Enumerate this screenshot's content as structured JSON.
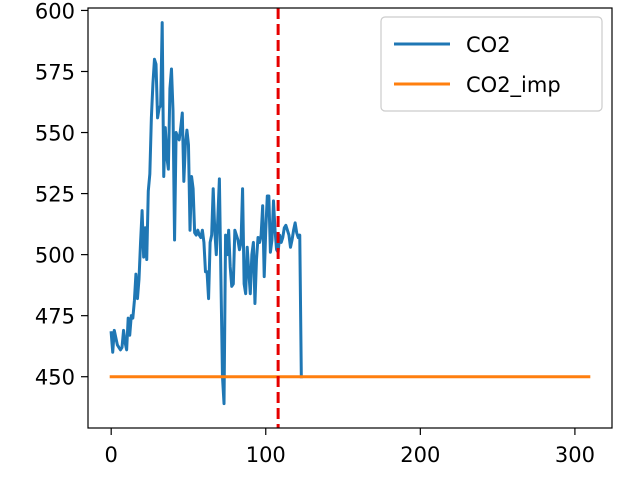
{
  "chart_data": {
    "type": "line",
    "title": "",
    "xlabel": "",
    "ylabel": "",
    "xlim": [
      -15,
      324
    ],
    "ylim": [
      429,
      601
    ],
    "xticks": [
      0,
      100,
      200,
      300
    ],
    "yticks": [
      450,
      475,
      500,
      525,
      550,
      575,
      600
    ],
    "xtick_labels": [
      "0",
      "100",
      "200",
      "300"
    ],
    "ytick_labels": [
      "450",
      "475",
      "500",
      "525",
      "550",
      "575",
      "600"
    ],
    "grid": false,
    "legend_position": "top-right",
    "vline": {
      "x": 108,
      "color": "#e60000",
      "style": "dashed"
    },
    "series": [
      {
        "name": "CO2",
        "color": "#1f77b4",
        "x": [
          0,
          1,
          2,
          3,
          4,
          5,
          6,
          7,
          8,
          9,
          10,
          11,
          12,
          13,
          14,
          15,
          16,
          17,
          18,
          19,
          20,
          21,
          22,
          23,
          24,
          25,
          26,
          27,
          28,
          29,
          30,
          31,
          32,
          33,
          34,
          35,
          36,
          37,
          38,
          39,
          40,
          41,
          42,
          43,
          44,
          45,
          46,
          47,
          48,
          49,
          50,
          51,
          52,
          53,
          54,
          55,
          56,
          57,
          58,
          59,
          60,
          61,
          62,
          63,
          64,
          65,
          66,
          67,
          68,
          69,
          70,
          71,
          72,
          73,
          74,
          75,
          76,
          77,
          78,
          79,
          80,
          81,
          82,
          83,
          84,
          85,
          86,
          87,
          88,
          89,
          90,
          91,
          92,
          93,
          94,
          95,
          96,
          97,
          98,
          99,
          100,
          101,
          102,
          103,
          104,
          105,
          106,
          107,
          108,
          109,
          110,
          111,
          112,
          113,
          114,
          115,
          116,
          117,
          118,
          119,
          120,
          121,
          122,
          123
        ],
        "values": [
          468,
          460,
          469,
          466,
          463,
          462,
          461,
          462,
          469,
          464,
          461,
          474,
          467,
          475,
          474,
          481,
          492,
          482,
          490,
          505,
          518,
          499,
          511,
          498,
          526,
          533,
          556,
          570,
          580,
          578,
          556,
          560,
          561,
          595,
          532,
          552,
          540,
          535,
          568,
          576,
          559,
          506,
          550,
          548,
          547,
          552,
          558,
          530,
          545,
          551,
          545,
          510,
          532,
          527,
          509,
          508,
          510,
          508,
          507,
          510,
          505,
          493,
          493,
          482,
          505,
          508,
          527,
          510,
          500,
          515,
          531,
          490,
          450,
          439,
          508,
          500,
          510,
          495,
          487,
          488,
          510,
          508,
          506,
          502,
          505,
          527,
          488,
          484,
          503,
          493,
          484,
          500,
          505,
          480,
          498,
          507,
          505,
          508,
          520,
          491,
          510,
          524,
          524,
          501,
          506,
          522,
          510,
          502,
          501,
          508,
          505,
          507,
          511,
          512,
          510,
          508,
          503,
          506,
          510,
          513,
          509,
          507,
          508,
          450
        ]
      },
      {
        "name": "CO2_imp",
        "color": "#ff7f0e",
        "x": [
          0,
          309
        ],
        "values": [
          450,
          450
        ]
      }
    ]
  }
}
